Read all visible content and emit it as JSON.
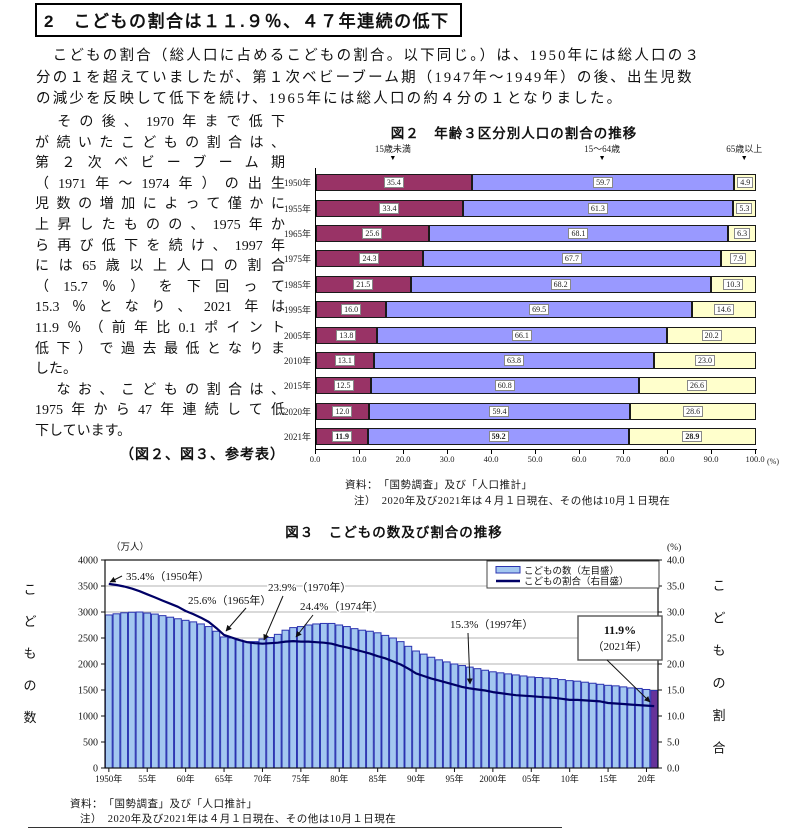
{
  "page": {
    "heading": "2　こどもの割合は１１.９％、４７年連続の低下",
    "intro_lines": [
      "　こどもの割合（総人口に占めるこどもの割合。以下同じ。）は、1950年には総人口の３",
      "分の１を超えていましたが、第１次ベビーブーム期（1947年～1949年）の後、出生児数",
      "の減少を反映して低下を続け、1965年には総人口の約４分の１となりました。"
    ],
    "column_lines": [
      "　その後、1970年まで低下",
      "が続いたこどもの割合は、",
      "第２次ベビーブーム期",
      "（1971年～1974年）の出生",
      "児数の増加によって僅かに",
      "上昇したものの、1975年か",
      "ら再び低下を続け、1997年",
      "には65歳以上人口の割合",
      "（15.7％）を下回って",
      "15.3％となり、2021年は",
      "11.9％（前年比0.1ポイント",
      "低下）で過去最低となりま",
      "した。",
      "　なお、こどもの割合は、",
      "1975年から47年連続して低",
      "下しています。",
      "（図２、図３、参考表）"
    ]
  },
  "fig2": {
    "source": "資料：　「国勢調査」及び「人口推計」",
    "note": "注）　2020年及び2021年は４月１日現在、その他は10月１日現在"
  },
  "fig3": {
    "source": "資料：　「国勢調査」及び「人口推計」",
    "note": "注）　2020年及び2021年は４月１日現在、その他は10月１日現在"
  },
  "chart_data": [
    {
      "type": "bar",
      "subtype": "horizontal-stacked",
      "title": "図２　年齢３区分別人口の割合の推移",
      "categories": [
        "1950年",
        "1955年",
        "1965年",
        "1975年",
        "1985年",
        "1995年",
        "2005年",
        "2010年",
        "2015年",
        "2020年",
        "2021年"
      ],
      "series": [
        {
          "name": "15歳未満",
          "color": "#993366",
          "values": [
            35.4,
            33.4,
            25.6,
            24.3,
            21.5,
            16.0,
            13.8,
            13.1,
            12.5,
            12.0,
            11.9
          ]
        },
        {
          "name": "15～64歳",
          "color": "#9999FF",
          "values": [
            59.7,
            61.3,
            68.1,
            67.7,
            68.2,
            69.5,
            66.1,
            63.8,
            60.8,
            59.4,
            59.2
          ]
        },
        {
          "name": "65歳以上",
          "color": "#FFFFCC",
          "values": [
            4.9,
            5.3,
            6.3,
            7.9,
            10.3,
            14.6,
            20.2,
            23.0,
            26.6,
            28.6,
            28.9
          ]
        }
      ],
      "xlim": [
        0,
        100
      ],
      "xticks": [
        "0.0",
        "10.0",
        "20.0",
        "30.0",
        "40.0",
        "50.0",
        "60.0",
        "70.0",
        "80.0",
        "90.0",
        "100.0"
      ],
      "x_unit": "(%)",
      "grid": false,
      "legend_position": "top-markers"
    },
    {
      "type": "bar",
      "subtype": "bar+line-dual-axis",
      "title": "図３　こどもの数及び割合の推移",
      "years_start": 1950,
      "bars": {
        "name": "こどもの数（左目盛）",
        "axis": "left",
        "unit": "万人",
        "color": "#A3C7F0",
        "stroke": "#2B33B0",
        "last_bar_color": "#663399",
        "values": [
          2943,
          2965,
          2985,
          2995,
          3000,
          2980,
          2960,
          2930,
          2900,
          2870,
          2840,
          2810,
          2770,
          2720,
          2630,
          2520,
          2500,
          2460,
          2430,
          2430,
          2480,
          2510,
          2570,
          2650,
          2700,
          2720,
          2750,
          2770,
          2780,
          2780,
          2750,
          2720,
          2680,
          2650,
          2630,
          2600,
          2550,
          2500,
          2430,
          2340,
          2250,
          2190,
          2130,
          2080,
          2040,
          2000,
          1970,
          1940,
          1910,
          1880,
          1850,
          1830,
          1810,
          1790,
          1770,
          1750,
          1740,
          1730,
          1720,
          1700,
          1680,
          1670,
          1650,
          1630,
          1610,
          1590,
          1580,
          1560,
          1540,
          1530,
          1510,
          1490
        ]
      },
      "line": {
        "name": "こどもの割合（右目盛）",
        "axis": "right",
        "unit": "%",
        "color": "#000066",
        "values": [
          35.4,
          35.2,
          34.9,
          34.5,
          34.0,
          33.4,
          32.8,
          32.2,
          31.6,
          31.0,
          30.2,
          29.6,
          28.9,
          28.1,
          26.9,
          25.6,
          25.1,
          24.6,
          24.2,
          24.0,
          23.9,
          24.0,
          24.1,
          24.3,
          24.4,
          24.3,
          24.3,
          24.2,
          24.1,
          23.9,
          23.5,
          23.2,
          22.8,
          22.4,
          22.0,
          21.5,
          21.1,
          20.5,
          19.9,
          19.1,
          18.2,
          17.7,
          17.2,
          16.8,
          16.4,
          16.0,
          15.6,
          15.3,
          15.1,
          14.9,
          14.6,
          14.4,
          14.2,
          14.0,
          13.9,
          13.8,
          13.7,
          13.6,
          13.5,
          13.3,
          13.1,
          13.1,
          13.0,
          12.9,
          12.8,
          12.5,
          12.4,
          12.3,
          12.2,
          12.1,
          12.0,
          11.9
        ]
      },
      "left_ylim": [
        0,
        4000
      ],
      "right_ylim": [
        0,
        40
      ],
      "left_yticks": [
        "4000",
        "3500",
        "3000",
        "2500",
        "2000",
        "1500",
        "1000",
        "500",
        "0"
      ],
      "right_yticks": [
        "40.0",
        "35.0",
        "30.0",
        "25.0",
        "20.0",
        "15.0",
        "10.0",
        "5.0",
        "0.0"
      ],
      "left_unit": "（万人）",
      "right_unit": "(%)",
      "left_axis_title": "こどもの数",
      "right_axis_title": "こどもの割合",
      "xticklabels": [
        "1950年",
        "55年",
        "60年",
        "65年",
        "70年",
        "75年",
        "80年",
        "85年",
        "90年",
        "95年",
        "2000年",
        "05年",
        "10年",
        "15年",
        "20年"
      ],
      "grid": true,
      "legend_position": "top-right-box",
      "annotations": [
        {
          "label": "35.4%（1950年）",
          "year": 1950,
          "value": 35.4
        },
        {
          "label": "25.6%（1965年）",
          "year": 1965,
          "value": 25.6
        },
        {
          "label": "23.9%（1970年）",
          "year": 1970,
          "value": 23.9
        },
        {
          "label": "24.4%（1974年）",
          "year": 1974,
          "value": 24.4
        },
        {
          "label": "15.3%（1997年）",
          "year": 1997,
          "value": 15.3
        },
        {
          "label": "11.9%",
          "label2": "（2021年）",
          "year": 2021,
          "value": 11.9,
          "boxed": true
        }
      ]
    }
  ]
}
